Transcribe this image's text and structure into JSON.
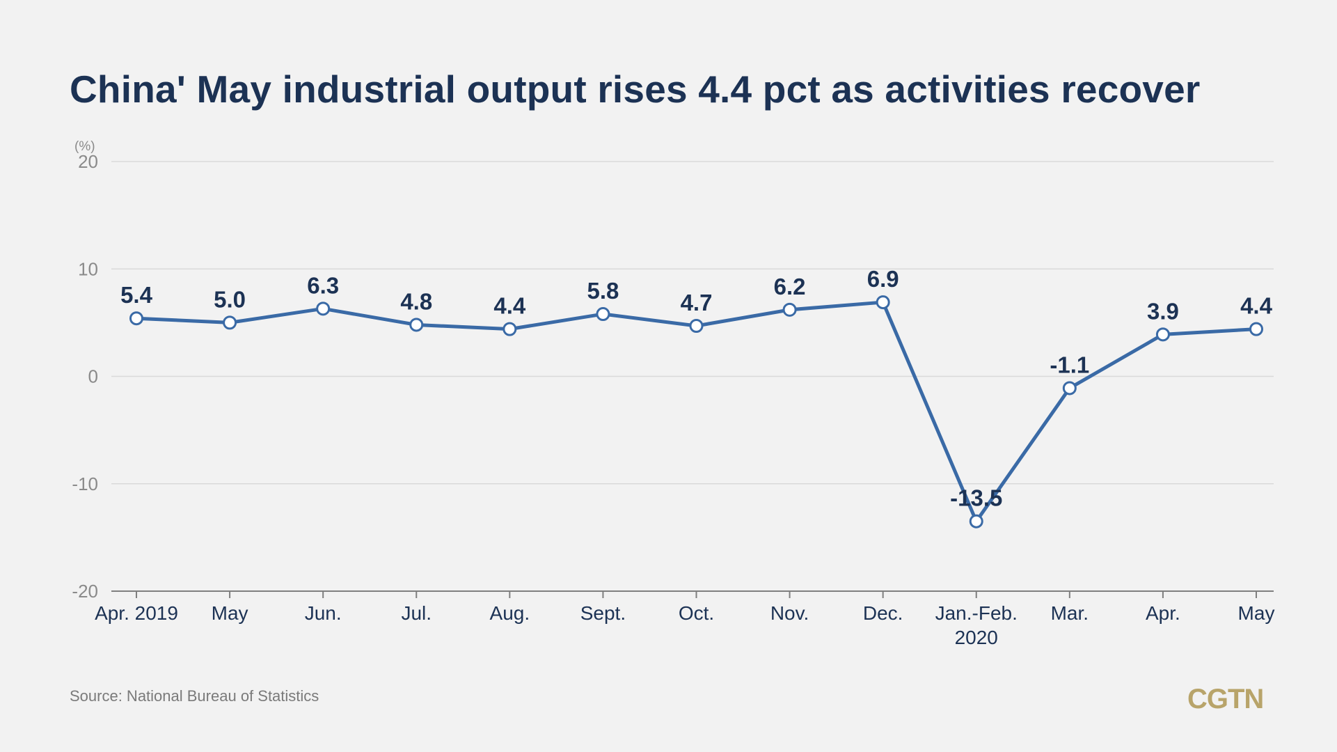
{
  "title": "China' May industrial output rises 4.4 pct as activities recover",
  "source": "Source: National Bureau of Statistics",
  "logo": "CGTN",
  "colors": {
    "background": "#f2f2f2",
    "line": "#3a6aa6",
    "text_dark": "#1c3254",
    "grid": "#d9d9d9",
    "logo": "#b8a46a"
  },
  "chart_data": {
    "type": "line",
    "y_unit": "(%)",
    "categories": [
      [
        "Apr. 2019"
      ],
      [
        "May"
      ],
      [
        "Jun."
      ],
      [
        "Jul."
      ],
      [
        "Aug."
      ],
      [
        "Sept."
      ],
      [
        "Oct."
      ],
      [
        "Nov."
      ],
      [
        "Dec."
      ],
      [
        "Jan.-Feb.",
        "2020"
      ],
      [
        "Mar."
      ],
      [
        "Apr."
      ],
      [
        "May"
      ]
    ],
    "series": [
      {
        "values": [
          5.4,
          5.0,
          6.3,
          4.8,
          4.4,
          5.8,
          4.7,
          6.2,
          6.9,
          -13.5,
          -1.1,
          3.9,
          4.4
        ]
      }
    ],
    "data_labels": [
      "5.4",
      "5.0",
      "6.3",
      "4.8",
      "4.4",
      "5.8",
      "4.7",
      "6.2",
      "6.9",
      "-13.5",
      "-1.1",
      "3.9",
      "4.4"
    ],
    "ylim": [
      -20,
      20
    ],
    "yticks": [
      20,
      10,
      0,
      -10,
      -20
    ],
    "grid": true,
    "legend": "none"
  }
}
